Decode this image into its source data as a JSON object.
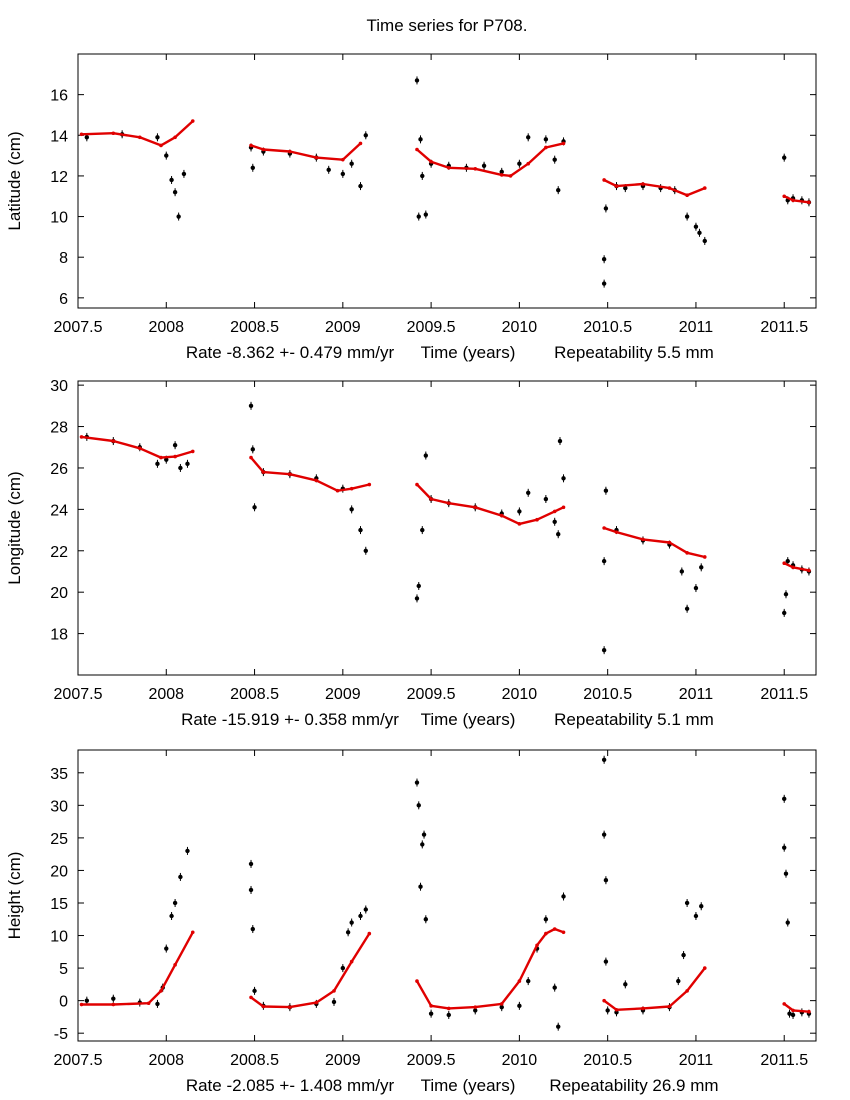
{
  "figure": {
    "title": "Time series for P708."
  },
  "chart_data": [
    {
      "type": "scatter",
      "panel": "latitude",
      "ylabel": "Latitude (cm)",
      "xlabel": "Time (years)",
      "rate_text": "Rate -8.362 +- 0.479 mm/yr",
      "repeat_text": "Repeatability 5.5 mm",
      "xlim": [
        2007.5,
        2011.68
      ],
      "ylim": [
        5.5,
        18.0
      ],
      "xticks": [
        "2007.5",
        "2008",
        "2008.5",
        "2009",
        "2009.5",
        "2010",
        "2010.5",
        "2011",
        "2011.5"
      ],
      "yticks": [
        "6",
        "8",
        "10",
        "12",
        "14",
        "16"
      ],
      "series": [
        {
          "name": "observations",
          "color": "#000000",
          "segments": [
            {
              "t": [
                2007.55,
                2007.75,
                2007.95,
                2008.0,
                2008.03,
                2008.05,
                2008.07,
                2008.1
              ],
              "v": [
                13.9,
                14.05,
                13.9,
                13.0,
                11.8,
                11.2,
                10.0,
                12.1
              ]
            },
            {
              "t": [
                2008.48,
                2008.49,
                2008.55,
                2008.7,
                2008.85,
                2008.92,
                2009.0,
                2009.05,
                2009.1,
                2009.13
              ],
              "v": [
                13.4,
                12.4,
                13.2,
                13.1,
                12.9,
                12.3,
                12.1,
                12.6,
                11.5,
                14.0
              ]
            },
            {
              "t": [
                2009.42,
                2009.43,
                2009.44,
                2009.45,
                2009.47,
                2009.5,
                2009.6,
                2009.7,
                2009.8,
                2009.9,
                2010.0,
                2010.05,
                2010.15,
                2010.2,
                2010.22,
                2010.25
              ],
              "v": [
                16.7,
                10.0,
                13.8,
                12.0,
                10.1,
                12.6,
                12.5,
                12.4,
                12.5,
                12.2,
                12.6,
                13.9,
                13.8,
                12.8,
                11.3,
                13.7
              ]
            },
            {
              "t": [
                2010.48,
                2010.48,
                2010.49,
                2010.55,
                2010.6,
                2010.7,
                2010.8,
                2010.88,
                2010.95,
                2011.0,
                2011.02,
                2011.05
              ],
              "v": [
                6.7,
                7.9,
                10.4,
                11.5,
                11.4,
                11.5,
                11.4,
                11.3,
                10.0,
                9.5,
                9.2,
                8.8
              ]
            },
            {
              "t": [
                2011.5,
                2011.52,
                2011.55,
                2011.6,
                2011.64
              ],
              "v": [
                12.9,
                10.8,
                10.9,
                10.8,
                10.7
              ]
            }
          ]
        },
        {
          "name": "model",
          "color": "#e00000",
          "segments": [
            {
              "t": [
                2007.52,
                2007.7,
                2007.85,
                2007.97,
                2008.05,
                2008.15
              ],
              "v": [
                14.05,
                14.1,
                13.9,
                13.5,
                13.9,
                14.7
              ]
            },
            {
              "t": [
                2008.48,
                2008.55,
                2008.7,
                2008.85,
                2009.0,
                2009.1
              ],
              "v": [
                13.5,
                13.3,
                13.2,
                12.9,
                12.8,
                13.6
              ]
            },
            {
              "t": [
                2009.42,
                2009.5,
                2009.6,
                2009.75,
                2009.9,
                2009.95,
                2010.05,
                2010.15,
                2010.25
              ],
              "v": [
                13.3,
                12.7,
                12.4,
                12.35,
                12.05,
                12.0,
                12.6,
                13.4,
                13.6
              ]
            },
            {
              "t": [
                2010.48,
                2010.55,
                2010.7,
                2010.85,
                2010.95,
                2011.05
              ],
              "v": [
                11.8,
                11.5,
                11.6,
                11.4,
                11.05,
                11.4
              ]
            },
            {
              "t": [
                2011.5,
                2011.55,
                2011.64
              ],
              "v": [
                11.0,
                10.8,
                10.7
              ]
            }
          ]
        }
      ]
    },
    {
      "type": "scatter",
      "panel": "longitude",
      "ylabel": "Longitude (cm)",
      "xlabel": "Time (years)",
      "rate_text": "Rate -15.919 +- 0.358 mm/yr",
      "repeat_text": "Repeatability 5.1 mm",
      "xlim": [
        2007.5,
        2011.68
      ],
      "ylim": [
        16.0,
        30.2
      ],
      "xticks": [
        "2007.5",
        "2008",
        "2008.5",
        "2009",
        "2009.5",
        "2010",
        "2010.5",
        "2011",
        "2011.5"
      ],
      "yticks": [
        "18",
        "20",
        "22",
        "24",
        "26",
        "28",
        "30"
      ],
      "series": [
        {
          "name": "observations",
          "color": "#000000",
          "segments": [
            {
              "t": [
                2007.55,
                2007.7,
                2007.85,
                2007.95,
                2008.0,
                2008.05,
                2008.08,
                2008.12
              ],
              "v": [
                27.5,
                27.3,
                27.0,
                26.2,
                26.4,
                27.1,
                26.0,
                26.2
              ]
            },
            {
              "t": [
                2008.48,
                2008.49,
                2008.5,
                2008.55,
                2008.7,
                2008.85,
                2009.0,
                2009.05,
                2009.1,
                2009.13
              ],
              "v": [
                29.0,
                26.9,
                24.1,
                25.8,
                25.7,
                25.5,
                25.0,
                24.0,
                23.0,
                22.0
              ]
            },
            {
              "t": [
                2009.42,
                2009.43,
                2009.45,
                2009.47,
                2009.5,
                2009.6,
                2009.75,
                2009.9,
                2010.0,
                2010.05,
                2010.15,
                2010.2,
                2010.22,
                2010.23,
                2010.25
              ],
              "v": [
                19.7,
                20.3,
                23.0,
                26.6,
                24.5,
                24.3,
                24.1,
                23.8,
                23.9,
                24.8,
                24.5,
                23.4,
                22.8,
                27.3,
                25.5
              ]
            },
            {
              "t": [
                2010.48,
                2010.48,
                2010.49,
                2010.55,
                2010.7,
                2010.85,
                2010.92,
                2010.95,
                2011.0,
                2011.03
              ],
              "v": [
                17.2,
                21.5,
                24.9,
                23.0,
                22.5,
                22.3,
                21.0,
                19.2,
                20.2,
                21.2
              ]
            },
            {
              "t": [
                2011.5,
                2011.51,
                2011.52,
                2011.55,
                2011.6,
                2011.64
              ],
              "v": [
                19.0,
                19.9,
                21.5,
                21.3,
                21.1,
                21.0
              ]
            }
          ]
        },
        {
          "name": "model",
          "color": "#e00000",
          "segments": [
            {
              "t": [
                2007.52,
                2007.7,
                2007.85,
                2007.97,
                2008.05,
                2008.15
              ],
              "v": [
                27.5,
                27.3,
                26.95,
                26.5,
                26.55,
                26.8
              ]
            },
            {
              "t": [
                2008.48,
                2008.55,
                2008.7,
                2008.85,
                2008.97,
                2009.05,
                2009.15
              ],
              "v": [
                26.5,
                25.8,
                25.7,
                25.4,
                24.9,
                25.0,
                25.2
              ]
            },
            {
              "t": [
                2009.42,
                2009.5,
                2009.6,
                2009.75,
                2009.9,
                2010.0,
                2010.1,
                2010.2,
                2010.25
              ],
              "v": [
                25.2,
                24.5,
                24.3,
                24.1,
                23.7,
                23.3,
                23.5,
                23.9,
                24.1
              ]
            },
            {
              "t": [
                2010.48,
                2010.55,
                2010.7,
                2010.85,
                2010.95,
                2011.05
              ],
              "v": [
                23.1,
                22.9,
                22.55,
                22.4,
                21.9,
                21.7
              ]
            },
            {
              "t": [
                2011.5,
                2011.55,
                2011.64
              ],
              "v": [
                21.4,
                21.2,
                21.05
              ]
            }
          ]
        }
      ]
    },
    {
      "type": "scatter",
      "panel": "height",
      "ylabel": "Height (cm)",
      "xlabel": "Time (years)",
      "rate_text": "Rate -2.085 +- 1.408 mm/yr",
      "repeat_text": "Repeatability 26.9 mm",
      "xlim": [
        2007.5,
        2011.68
      ],
      "ylim": [
        -6.2,
        38.5
      ],
      "xticks": [
        "2007.5",
        "2008",
        "2008.5",
        "2009",
        "2009.5",
        "2010",
        "2010.5",
        "2011",
        "2011.5"
      ],
      "yticks": [
        "-5",
        "0",
        "5",
        "10",
        "15",
        "20",
        "25",
        "30",
        "35"
      ],
      "series": [
        {
          "name": "observations",
          "color": "#000000",
          "segments": [
            {
              "t": [
                2007.55,
                2007.7,
                2007.85,
                2007.95,
                2007.98,
                2008.0,
                2008.03,
                2008.05,
                2008.08,
                2008.12
              ],
              "v": [
                0.0,
                0.3,
                -0.3,
                -0.5,
                2.0,
                8.0,
                13.0,
                15.0,
                19.0,
                23.0
              ]
            },
            {
              "t": [
                2008.48,
                2008.48,
                2008.49,
                2008.5,
                2008.55,
                2008.7,
                2008.85,
                2008.95,
                2009.0,
                2009.03,
                2009.05,
                2009.1,
                2009.13
              ],
              "v": [
                21.0,
                17.0,
                11.0,
                1.5,
                -0.8,
                -1.0,
                -0.5,
                -0.2,
                5.0,
                10.5,
                12.0,
                13.0,
                14.0
              ]
            },
            {
              "t": [
                2009.42,
                2009.43,
                2009.44,
                2009.45,
                2009.46,
                2009.47,
                2009.5,
                2009.6,
                2009.75,
                2009.9,
                2010.0,
                2010.05,
                2010.1,
                2010.15,
                2010.2,
                2010.22,
                2010.25
              ],
              "v": [
                33.5,
                30.0,
                17.5,
                24.0,
                25.5,
                12.5,
                -2.0,
                -2.2,
                -1.5,
                -1.0,
                -0.8,
                3.0,
                8.0,
                12.5,
                2.0,
                -4.0,
                16.0
              ]
            },
            {
              "t": [
                2010.48,
                2010.48,
                2010.49,
                2010.49,
                2010.5,
                2010.55,
                2010.6,
                2010.7,
                2010.85,
                2010.9,
                2010.93,
                2010.95,
                2011.0,
                2011.03
              ],
              "v": [
                37.0,
                25.5,
                18.5,
                6.0,
                -1.5,
                -1.8,
                2.5,
                -1.5,
                -1.0,
                3.0,
                7.0,
                15.0,
                13.0,
                14.5
              ]
            },
            {
              "t": [
                2011.5,
                2011.5,
                2011.51,
                2011.52,
                2011.53,
                2011.55,
                2011.6,
                2011.64
              ],
              "v": [
                31.0,
                23.5,
                19.5,
                12.0,
                -2.0,
                -2.2,
                -1.8,
                -2.0
              ]
            }
          ]
        },
        {
          "name": "model",
          "color": "#e00000",
          "segments": [
            {
              "t": [
                2007.52,
                2007.7,
                2007.9,
                2007.97,
                2008.05,
                2008.15
              ],
              "v": [
                -0.6,
                -0.6,
                -0.4,
                1.5,
                5.5,
                10.5
              ]
            },
            {
              "t": [
                2008.48,
                2008.55,
                2008.7,
                2008.85,
                2008.95,
                2009.05,
                2009.15
              ],
              "v": [
                0.5,
                -0.9,
                -1.0,
                -0.3,
                1.5,
                6.0,
                10.3
              ]
            },
            {
              "t": [
                2009.42,
                2009.5,
                2009.6,
                2009.75,
                2009.9,
                2010.0,
                2010.1,
                2010.15,
                2010.2,
                2010.25
              ],
              "v": [
                3.0,
                -0.8,
                -1.2,
                -1.0,
                -0.5,
                3.0,
                8.5,
                10.3,
                11.0,
                10.5
              ]
            },
            {
              "t": [
                2010.48,
                2010.55,
                2010.7,
                2010.85,
                2010.95,
                2011.05
              ],
              "v": [
                0.0,
                -1.4,
                -1.2,
                -0.9,
                1.5,
                5.0
              ]
            },
            {
              "t": [
                2011.5,
                2011.55,
                2011.64
              ],
              "v": [
                -0.5,
                -1.5,
                -1.7
              ]
            }
          ]
        }
      ]
    }
  ]
}
